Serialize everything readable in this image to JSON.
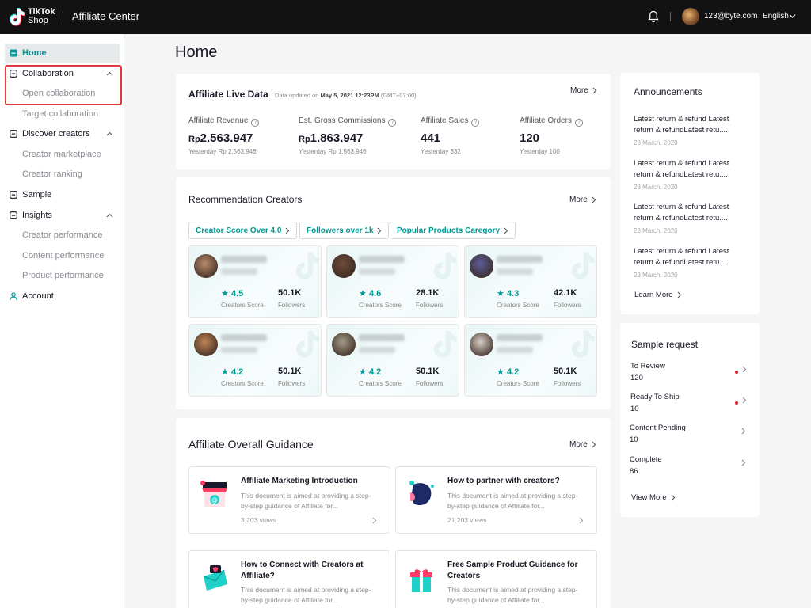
{
  "topbar": {
    "logo_line1": "TikTok",
    "logo_line2": "Shop",
    "app_name": "Affiliate Center",
    "user_email": "123@byte.com",
    "language": "English"
  },
  "sidebar": {
    "items": [
      {
        "label": "Home",
        "icon": "home-icon",
        "active": true
      },
      {
        "label": "Collaboration",
        "icon": "collaboration-icon",
        "expanded": true,
        "children": [
          "Open collaboration",
          "Target collaboration"
        ]
      },
      {
        "label": "Discover creators",
        "icon": "discover-icon",
        "expanded": true,
        "children": [
          "Creator marketplace",
          "Creator ranking"
        ]
      },
      {
        "label": "Sample",
        "icon": "sample-icon"
      },
      {
        "label": "Insights",
        "icon": "insights-icon",
        "expanded": true,
        "children": [
          "Creator performance",
          "Content performance",
          "Product performance"
        ]
      },
      {
        "label": "Account",
        "icon": "account-icon"
      }
    ]
  },
  "page_title": "Home",
  "live_data": {
    "title": "Affiliate Live Data",
    "updated_prefix": "Data updated on ",
    "updated_time": "May 5, 2021 12:23PM",
    "updated_tz": " (GMT+07:00)",
    "more": "More",
    "metrics": [
      {
        "label": "Affiliate Revenue",
        "currency": "Rp",
        "value": "2.563.947",
        "yesterday": "Yesterday Rp 2.563.946"
      },
      {
        "label": "Est. Gross Commissions",
        "currency": "Rp",
        "value": "1.863.947",
        "yesterday": "Yesterday Rp 1.563.946"
      },
      {
        "label": "Affiliate Sales",
        "currency": "",
        "value": "441",
        "yesterday": "Yesterday 332"
      },
      {
        "label": "Affiliate Orders",
        "currency": "",
        "value": "120",
        "yesterday": "Yesterday 100"
      }
    ]
  },
  "recommendation": {
    "title": "Recommendation Creators",
    "more": "More",
    "filters": [
      "Creator Score Over 4.0",
      "Followers over 1k",
      "Popular Products Caregory"
    ],
    "score_label": "Creators Score",
    "followers_label": "Followers",
    "creators": [
      {
        "score": "4.5",
        "followers": "50.1K",
        "avatar": "#b98a6a"
      },
      {
        "score": "4.6",
        "followers": "28.1K",
        "avatar": "#6e4a3a"
      },
      {
        "score": "4.3",
        "followers": "42.1K",
        "avatar": "#5a5d9a"
      },
      {
        "score": "4.2",
        "followers": "50.1K",
        "avatar": "#c08456"
      },
      {
        "score": "4.2",
        "followers": "50.1K",
        "avatar": "#a39a88"
      },
      {
        "score": "4.2",
        "followers": "50.1K",
        "avatar": "#d8cfc8"
      }
    ]
  },
  "guidance": {
    "title": "Affiliate Overall Guidance",
    "more": "More",
    "items": [
      {
        "title": "Affiliate Marketing Introduction",
        "desc": "This document is aimed at providing a step-by-step guidance of Affiliate for...",
        "views": "3,203 views",
        "icon": "shop-icon"
      },
      {
        "title": "How to partner with creators?",
        "desc": "This document is aimed at providing a step-by-step guidance of Affiliate for...",
        "views": "21,203 views",
        "icon": "creator-profile-icon"
      },
      {
        "title": "How to Connect with Creators at Affiliate?",
        "desc": "This document is aimed at providing a step-by-step guidance of Affiliate for...",
        "views": "",
        "icon": "connect-envelope-icon"
      },
      {
        "title": "Free Sample Product Guidance for Creators",
        "desc": "This document is aimed at providing a step-by-step guidance of Affiliate for...",
        "views": "",
        "icon": "gift-box-icon"
      }
    ]
  },
  "announcements": {
    "title": "Announcements",
    "items": [
      {
        "text": "Latest return & refund Latest return & refundLatest retu....",
        "date": "23 March, 2020"
      },
      {
        "text": "Latest return & refund Latest return & refundLatest retu....",
        "date": "23 March, 2020"
      },
      {
        "text": "Latest return & refund Latest return & refundLatest retu....",
        "date": "23 March, 2020"
      },
      {
        "text": "Latest return & refund Latest return & refundLatest retu....",
        "date": "23 March, 2020"
      }
    ],
    "learn_more": "Learn More"
  },
  "sample_request": {
    "title": "Sample request",
    "items": [
      {
        "label": "To Review",
        "value": "120",
        "dot": true
      },
      {
        "label": "Ready To Ship",
        "value": "10",
        "dot": true
      },
      {
        "label": "Content Pending",
        "value": "10",
        "dot": false
      },
      {
        "label": "Complete",
        "value": "86",
        "dot": false
      }
    ],
    "view_more": "View More"
  },
  "colors": {
    "accent": "#009995",
    "highlight": "#e0393e",
    "topbar": "#121212"
  }
}
